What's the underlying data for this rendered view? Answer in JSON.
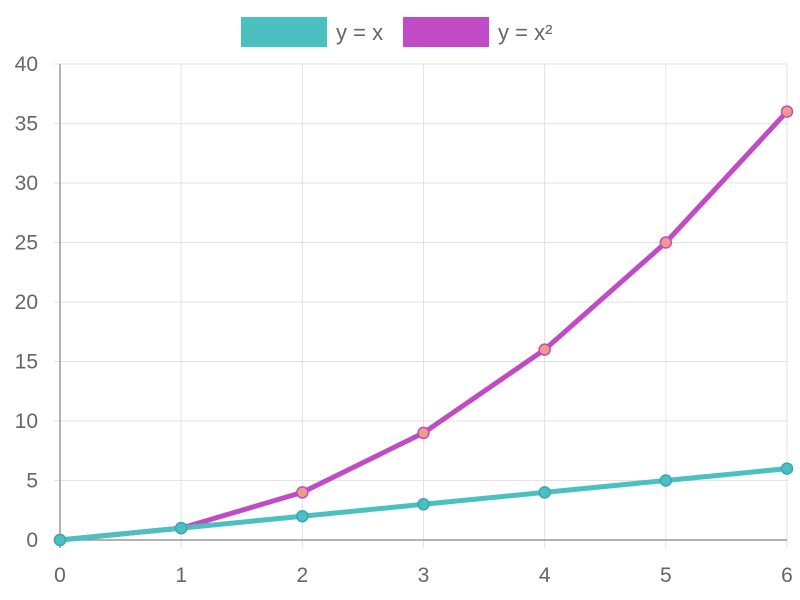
{
  "chart_data": {
    "type": "line",
    "x": [
      0,
      1,
      2,
      3,
      4,
      5,
      6
    ],
    "series": [
      {
        "name": "y = x",
        "values": [
          0,
          1,
          2,
          3,
          4,
          5,
          6
        ],
        "line_color": "#4bc0c0",
        "point_fill": "#4bc0c0",
        "point_stroke": "#3aa6b2"
      },
      {
        "name": "y = x²",
        "values": [
          0,
          1,
          4,
          9,
          16,
          25,
          36
        ],
        "line_color": "#c04bc4",
        "point_fill": "#f29a8a",
        "point_stroke": "#c04bc4"
      }
    ],
    "title": "",
    "xlabel": "",
    "ylabel": "",
    "xlim": [
      0,
      6
    ],
    "ylim": [
      0,
      40
    ],
    "x_ticks": [
      "0",
      "1",
      "2",
      "3",
      "4",
      "5",
      "6"
    ],
    "y_ticks": [
      "0",
      "5",
      "10",
      "15",
      "20",
      "25",
      "30",
      "35",
      "40"
    ],
    "grid": true,
    "legend_position": "top-center"
  }
}
